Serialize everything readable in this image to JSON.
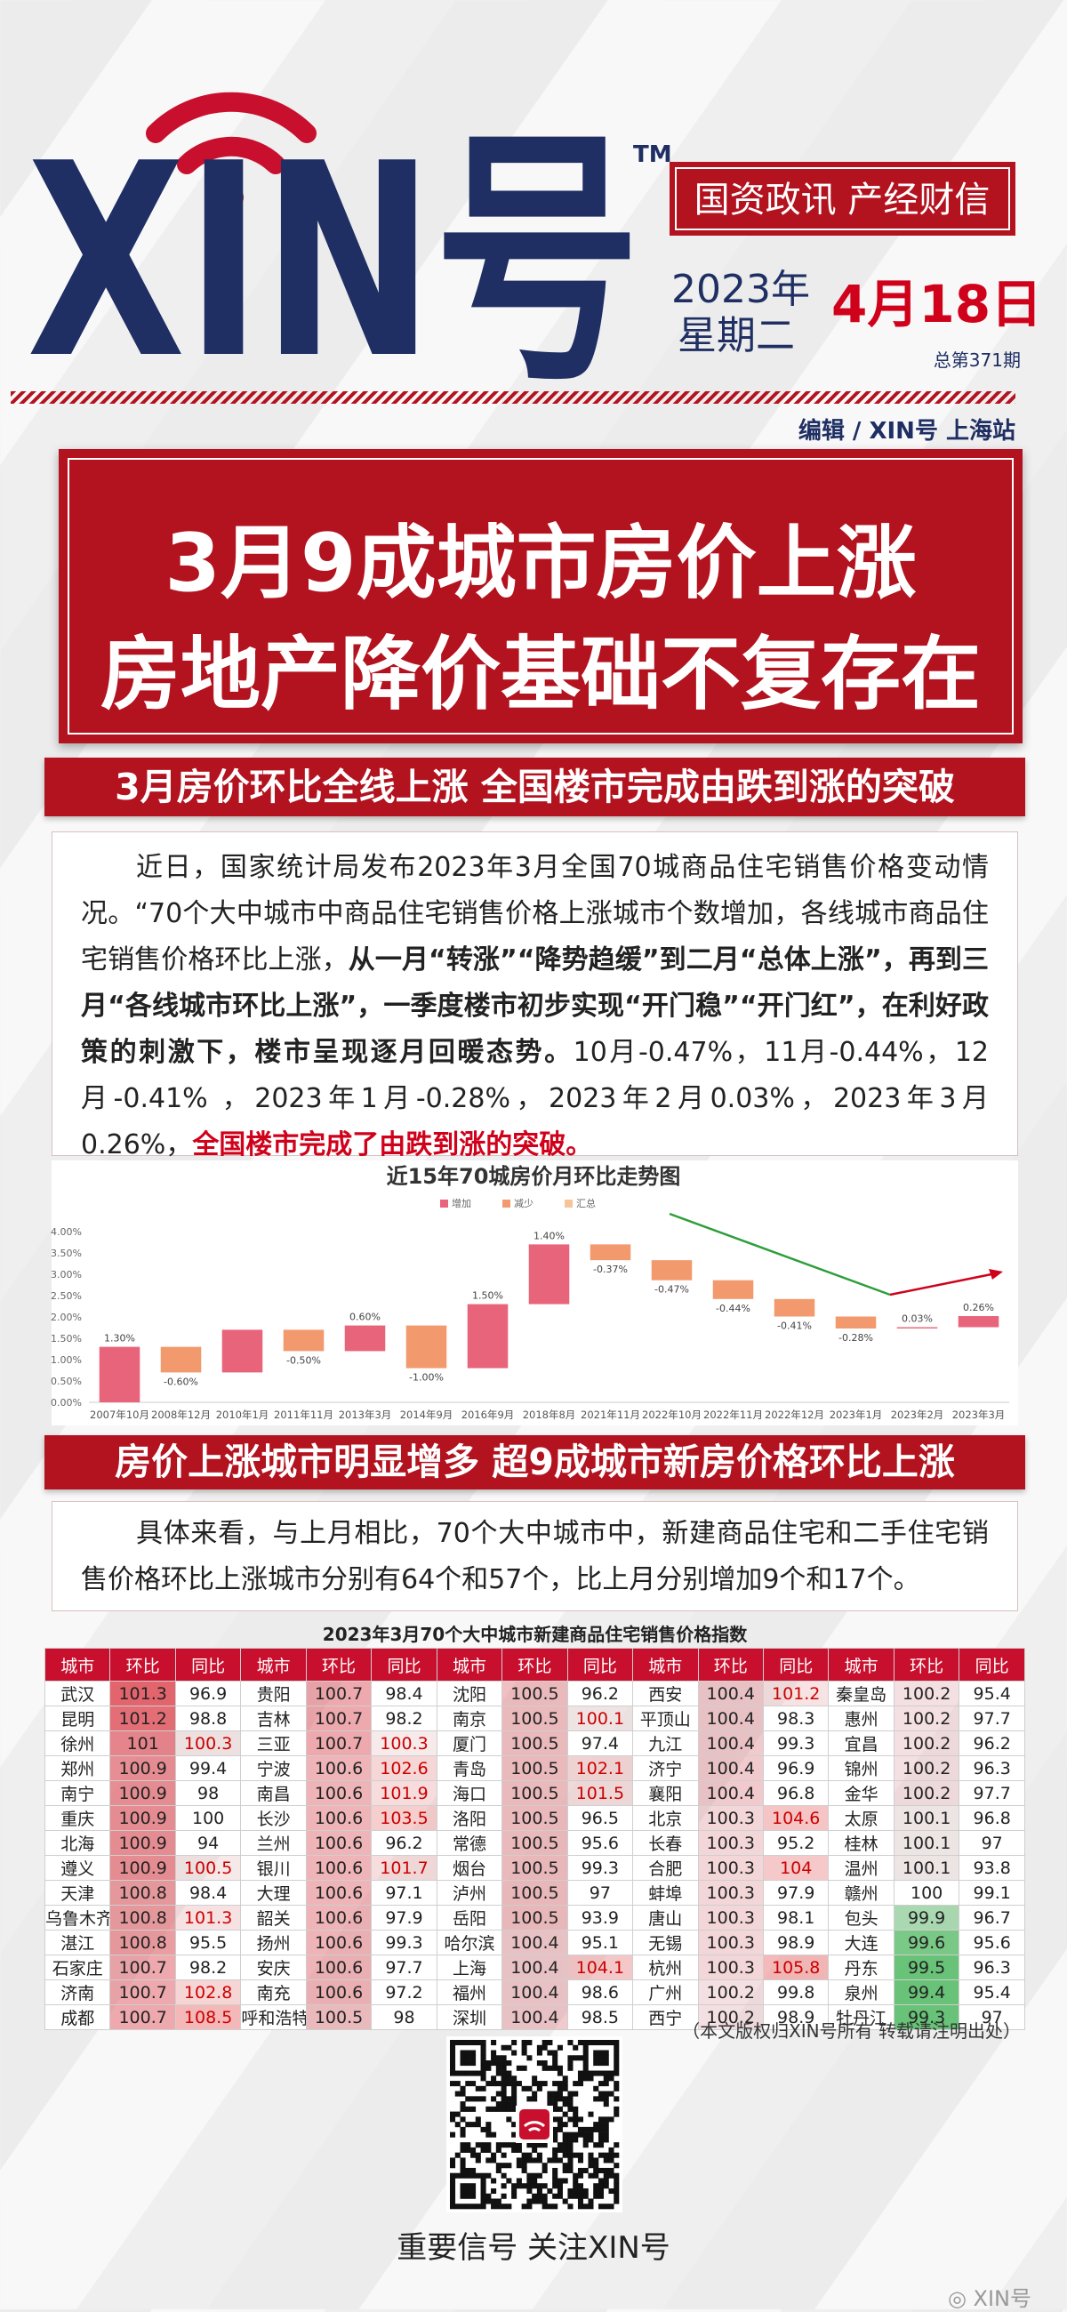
{
  "header": {
    "logo": "XIN号",
    "trademark": "TM",
    "slogan": "国资政讯 产经财信",
    "year": "2023年",
    "weekday": "星期二",
    "date": "4月18日",
    "issue": "总第371期",
    "editor": "编辑 / XIN号 上海站"
  },
  "headline": [
    "3月9成城市房价上涨",
    "房地产降价基础不复存在"
  ],
  "section1": {
    "title": "3月房价环比全线上涨 全国楼市完成由跌到涨的突破",
    "paragraph": [
      "近日，国家统计局发布2023年3月全国70城商品住宅销售价格变动情况。“70个大中城市中商品住宅销售价格上涨城市个数增加，各线城市商品住宅销售价格环比上涨，",
      "从一月“转涨”“降势趋缓”到二月“总体上涨”，再到三月“各线城市环比上涨”，一季度楼市初步实现“开门稳”“开门红”，在利好政策的刺激下，楼市呈现逐月回暖态势。",
      "10月-0.47%，11月-0.44%，12月-0.41% ，2023年1月-0.28%，2023年2月0.03%，2023年3月0.26%，",
      "全国楼市完成了由跌到涨的突破。"
    ]
  },
  "chart_data": {
    "type": "waterfall",
    "title": "近15年70城房价月环比走势图",
    "legend": [
      {
        "name": "增加",
        "color": "#e8647a"
      },
      {
        "name": "减少",
        "color": "#f29a6e"
      },
      {
        "name": "汇总",
        "color": "#f7c49a"
      }
    ],
    "categories": [
      "2007年10月",
      "2008年12月",
      "2010年1月",
      "2011年11月",
      "2013年3月",
      "2014年9月",
      "2016年9月",
      "2018年8月",
      "2021年11月",
      "2022年10月",
      "2022年11月",
      "2022年12月",
      "2023年1月",
      "2023年2月",
      "2023年3月"
    ],
    "values": [
      1.3,
      -0.6,
      1.0,
      -0.5,
      0.6,
      -1.0,
      1.5,
      1.4,
      -0.37,
      -0.47,
      -0.44,
      -0.41,
      -0.28,
      0.03,
      0.26
    ],
    "value_labels": [
      "1.30%",
      "-0.60%",
      null,
      "-0.50%",
      "0.60%",
      "-1.00%",
      "1.50%",
      "1.40%",
      "-0.37%",
      "-0.47%",
      "-0.44%",
      "-0.41%",
      "-0.28%",
      "0.03%",
      "0.26%"
    ],
    "ylim": [
      0,
      4
    ],
    "yticks": [
      {
        "value": 0,
        "label": "0.00%"
      },
      {
        "value": 0.5,
        "label": "0.50%"
      },
      {
        "value": 1,
        "label": "1.00%"
      },
      {
        "value": 1.5,
        "label": "1.50%"
      },
      {
        "value": 2,
        "label": "2.00%"
      },
      {
        "value": 2.5,
        "label": "2.50%"
      },
      {
        "value": 3,
        "label": "3.00%"
      },
      {
        "value": 3.5,
        "label": "3.50%"
      },
      {
        "value": 4,
        "label": "4.00%"
      }
    ],
    "grid": false
  },
  "section2": {
    "title": "房价上涨城市明显增多 超9成城市新房价格环比上涨",
    "paragraph": "具体来看，与上月相比，70个大中城市中，新建商品住宅和二手住宅销售价格环比上涨城市分别有64个和57个，比上月分别增加9个和17个。"
  },
  "table": {
    "title": "2023年3月70个大中城市新建商品住宅销售价格指数",
    "header": [
      "城市",
      "环比",
      "同比",
      "城市",
      "环比",
      "同比",
      "城市",
      "环比",
      "同比",
      "城市",
      "环比",
      "同比",
      "城市",
      "环比",
      "同比"
    ],
    "rows": [
      [
        "武汉",
        101.3,
        96.9,
        "贵阳",
        100.7,
        98.4,
        "沈阳",
        100.5,
        96.2,
        "西安",
        100.4,
        101.2,
        "秦皇岛",
        100.2,
        95.4
      ],
      [
        "昆明",
        101.2,
        98.8,
        "吉林",
        100.7,
        98.2,
        "南京",
        100.5,
        100.1,
        "平顶山",
        100.4,
        98.3,
        "惠州",
        100.2,
        97.7
      ],
      [
        "徐州",
        101,
        100.3,
        "三亚",
        100.7,
        100.3,
        "厦门",
        100.5,
        97.4,
        "九江",
        100.4,
        99.3,
        "宜昌",
        100.2,
        96.2
      ],
      [
        "郑州",
        100.9,
        99.4,
        "宁波",
        100.6,
        102.6,
        "青岛",
        100.5,
        102.1,
        "济宁",
        100.4,
        96.9,
        "锦州",
        100.2,
        96.3
      ],
      [
        "南宁",
        100.9,
        98,
        "南昌",
        100.6,
        101.9,
        "海口",
        100.5,
        101.5,
        "襄阳",
        100.4,
        96.8,
        "金华",
        100.2,
        97.7
      ],
      [
        "重庆",
        100.9,
        100,
        "长沙",
        100.6,
        103.5,
        "洛阳",
        100.5,
        96.5,
        "北京",
        100.3,
        104.6,
        "太原",
        100.1,
        96.8
      ],
      [
        "北海",
        100.9,
        94,
        "兰州",
        100.6,
        96.2,
        "常德",
        100.5,
        95.6,
        "长春",
        100.3,
        95.2,
        "桂林",
        100.1,
        97
      ],
      [
        "遵义",
        100.9,
        100.5,
        "银川",
        100.6,
        101.7,
        "烟台",
        100.5,
        99.3,
        "合肥",
        100.3,
        104,
        "温州",
        100.1,
        93.8
      ],
      [
        "天津",
        100.8,
        98.4,
        "大理",
        100.6,
        97.1,
        "泸州",
        100.5,
        97,
        "蚌埠",
        100.3,
        97.9,
        "赣州",
        100,
        99.1
      ],
      [
        "乌鲁木齐",
        100.8,
        101.3,
        "韶关",
        100.6,
        97.9,
        "岳阳",
        100.5,
        93.9,
        "唐山",
        100.3,
        98.1,
        "包头",
        99.9,
        96.7
      ],
      [
        "湛江",
        100.8,
        95.5,
        "扬州",
        100.6,
        99.3,
        "哈尔滨",
        100.4,
        95.1,
        "无锡",
        100.3,
        98.9,
        "大连",
        99.6,
        95.6
      ],
      [
        "石家庄",
        100.7,
        98.2,
        "安庆",
        100.6,
        97.7,
        "上海",
        100.4,
        104.1,
        "杭州",
        100.3,
        105.8,
        "丹东",
        99.5,
        96.3
      ],
      [
        "济南",
        100.7,
        102.8,
        "南充",
        100.6,
        97.2,
        "福州",
        100.4,
        98.6,
        "广州",
        100.2,
        99.8,
        "泉州",
        99.4,
        95.4
      ],
      [
        "成都",
        100.7,
        108.5,
        "呼和浩特",
        100.5,
        98,
        "深圳",
        100.4,
        98.5,
        "西宁",
        100.2,
        98.9,
        "牡丹江",
        99.3,
        97
      ]
    ]
  },
  "footer": {
    "copyright": "（本文版权归XIN号所有 转载请注明出处）",
    "slogan": "重要信号 关注XIN号",
    "watermark": "XIN号"
  }
}
